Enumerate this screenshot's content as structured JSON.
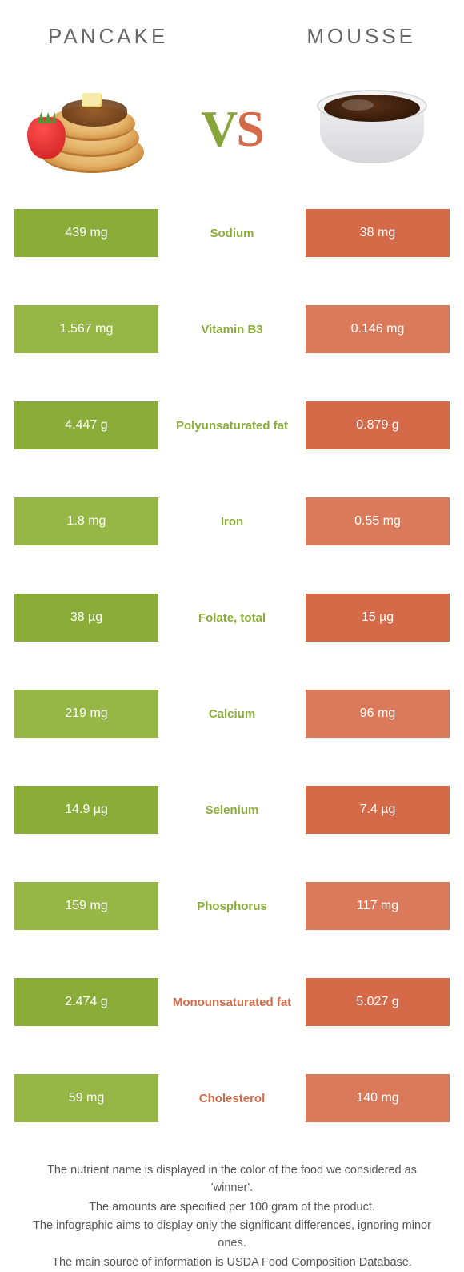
{
  "header": {
    "left_title": "Pancake",
    "right_title": "Mousse",
    "vs_v": "V",
    "vs_s": "S"
  },
  "colors": {
    "left": "#8aad3a",
    "left_alt": "#96b646",
    "right": "#d46a48",
    "right_alt": "#da7a5a",
    "center_left_text": "#8aad3a",
    "center_right_text": "#d46a48",
    "row_gap": "#ffffff"
  },
  "table": {
    "rows": [
      {
        "nutrient": "Sodium",
        "left": "439 mg",
        "right": "38 mg",
        "winner": "left"
      },
      {
        "nutrient": "Vitamin B3",
        "left": "1.567 mg",
        "right": "0.146 mg",
        "winner": "left"
      },
      {
        "nutrient": "Polyunsaturated fat",
        "left": "4.447 g",
        "right": "0.879 g",
        "winner": "left"
      },
      {
        "nutrient": "Iron",
        "left": "1.8 mg",
        "right": "0.55 mg",
        "winner": "left"
      },
      {
        "nutrient": "Folate, total",
        "left": "38 µg",
        "right": "15 µg",
        "winner": "left"
      },
      {
        "nutrient": "Calcium",
        "left": "219 mg",
        "right": "96 mg",
        "winner": "left"
      },
      {
        "nutrient": "Selenium",
        "left": "14.9 µg",
        "right": "7.4 µg",
        "winner": "left"
      },
      {
        "nutrient": "Phosphorus",
        "left": "159 mg",
        "right": "117 mg",
        "winner": "left"
      },
      {
        "nutrient": "Monounsaturated fat",
        "left": "2.474 g",
        "right": "5.027 g",
        "winner": "right"
      },
      {
        "nutrient": "Cholesterol",
        "left": "59 mg",
        "right": "140 mg",
        "winner": "right"
      }
    ]
  },
  "footnotes": [
    "The nutrient name is displayed in the color of the food we considered as 'winner'.",
    "The amounts are specified per 100 gram of the product.",
    "The infographic aims to display only the significant differences, ignoring minor ones.",
    "The main source of information is USDA Food Composition Database."
  ]
}
